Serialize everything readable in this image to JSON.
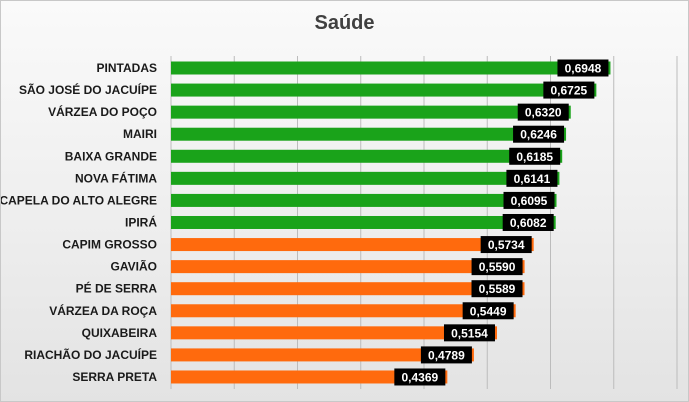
{
  "chart_data": {
    "type": "bar",
    "orientation": "horizontal",
    "title": "Saúde",
    "xlim": [
      0,
      0.8
    ],
    "grid": true,
    "categories": [
      "PINTADAS",
      "SÃO JOSÉ DO JACUÍPE",
      "VÁRZEA DO POÇO",
      "MAIRI",
      "BAIXA GRANDE",
      "NOVA FÁTIMA",
      "CAPELA DO ALTO ALEGRE",
      "IPIRÁ",
      "CAPIM GROSSO",
      "GAVIÃO",
      "PÉ DE SERRA",
      "VÁRZEA DA ROÇA",
      "QUIXABEIRA",
      "RIACHÃO DO JACUÍPE",
      "SERRA PRETA"
    ],
    "values": [
      0.6948,
      0.6725,
      0.632,
      0.6246,
      0.6185,
      0.6141,
      0.6095,
      0.6082,
      0.5734,
      0.559,
      0.5589,
      0.5449,
      0.5154,
      0.4789,
      0.4369
    ],
    "value_labels": [
      "0,6948",
      "0,6725",
      "0,6320",
      "0,6246",
      "0,6185",
      "0,6141",
      "0,6095",
      "0,6082",
      "0,5734",
      "0,5590",
      "0,5589",
      "0,5449",
      "0,5154",
      "0,4789",
      "0,4369"
    ],
    "bar_colors": [
      "#1aa31a",
      "#1aa31a",
      "#1aa31a",
      "#1aa31a",
      "#1aa31a",
      "#1aa31a",
      "#1aa31a",
      "#1aa31a",
      "#ff6a0d",
      "#ff6a0d",
      "#ff6a0d",
      "#ff6a0d",
      "#ff6a0d",
      "#ff6a0d",
      "#ff6a0d"
    ],
    "label_background": "#000000"
  }
}
